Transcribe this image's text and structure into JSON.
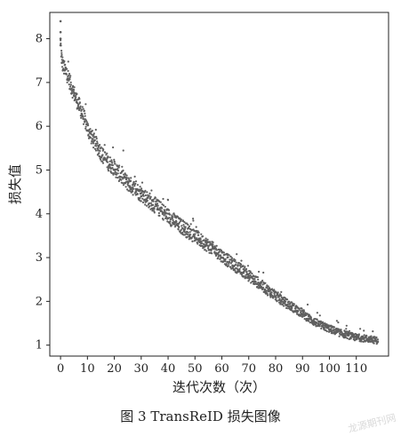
{
  "caption": "图 3  TransReID 损失图像",
  "watermark": "龙源期刊网",
  "chart_data": {
    "type": "scatter",
    "title": "",
    "xlabel": "迭代次数（次）",
    "ylabel": "损失值",
    "xlim": [
      -4,
      122
    ],
    "ylim": [
      0.75,
      8.6
    ],
    "xticks": [
      0,
      10,
      20,
      30,
      40,
      50,
      60,
      70,
      80,
      90,
      100,
      110
    ],
    "yticks": [
      1,
      2,
      3,
      4,
      5,
      6,
      7,
      8
    ],
    "point_color": "#5f5f5f",
    "grid": false,
    "series": [
      {
        "x": [
          0,
          0.5,
          1,
          2,
          3,
          4,
          5,
          6,
          7,
          8,
          9,
          10,
          12,
          14,
          16,
          18,
          20,
          22,
          24,
          26,
          28,
          30,
          32,
          34,
          36,
          38,
          40,
          42,
          44,
          46,
          48,
          50,
          52,
          54,
          56,
          58,
          60,
          62,
          64,
          66,
          68,
          70,
          72,
          74,
          76,
          78,
          80,
          82,
          84,
          86,
          88,
          90,
          92,
          94,
          96,
          98,
          100,
          102,
          104,
          106,
          108,
          110,
          112,
          114,
          116,
          118
        ],
        "y": [
          7.85,
          7.45,
          7.3,
          7.2,
          7.05,
          6.85,
          6.7,
          6.55,
          6.4,
          6.25,
          6.1,
          5.9,
          5.65,
          5.45,
          5.25,
          5.1,
          5.0,
          4.85,
          4.7,
          4.6,
          4.5,
          4.4,
          4.3,
          4.2,
          4.1,
          4.0,
          3.9,
          3.8,
          3.7,
          3.62,
          3.52,
          3.45,
          3.35,
          3.27,
          3.18,
          3.1,
          3.0,
          2.9,
          2.82,
          2.72,
          2.65,
          2.55,
          2.45,
          2.37,
          2.27,
          2.18,
          2.1,
          2.0,
          1.92,
          1.85,
          1.77,
          1.7,
          1.6,
          1.52,
          1.45,
          1.4,
          1.35,
          1.3,
          1.25,
          1.22,
          1.18,
          1.15,
          1.14,
          1.12,
          1.1,
          1.08
        ]
      }
    ]
  }
}
